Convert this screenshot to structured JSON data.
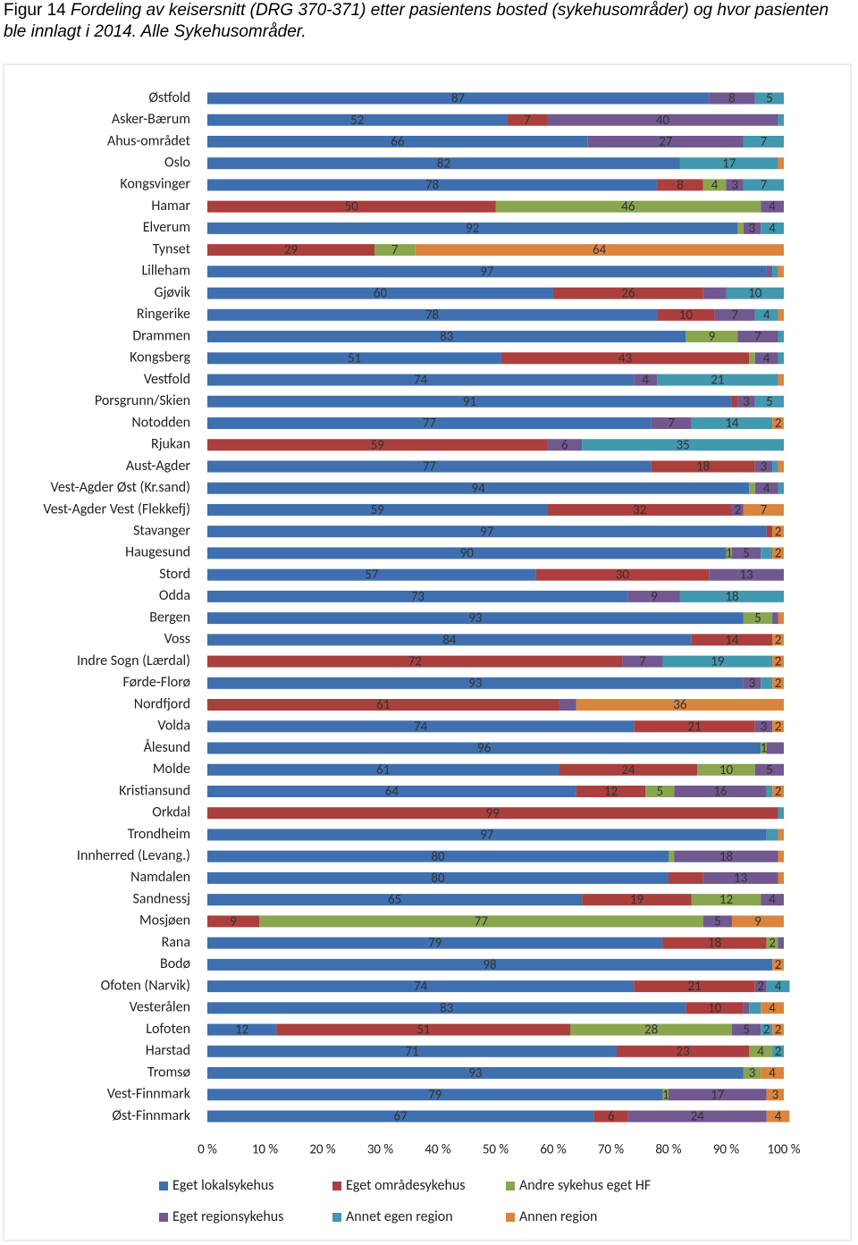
{
  "chart_data": {
    "type": "stacked-barh",
    "figure_label": "Figur 14",
    "title": "Fordeling av keisersnitt (DRG 370-371) etter pasientens bosted (sykehusområder) og hvor pasienten ble innlagt i 2014. Alle Sykehusområder.",
    "categories": [
      "Østfold",
      "Asker-Bærum",
      "Ahus-området",
      "Oslo",
      "Kongsvinger",
      "Hamar",
      "Elverum",
      "Tynset",
      "Lilleham",
      "Gjøvik",
      "Ringerike",
      "Drammen",
      "Kongsberg",
      "Vestfold",
      "Porsgrunn/Skien",
      "Notodden",
      "Rjukan",
      "Aust-Agder",
      "Vest-Agder Øst (Kr.sand)",
      "Vest-Agder Vest (Flekkefj)",
      "Stavanger",
      "Haugesund",
      "Stord",
      "Odda",
      "Bergen",
      "Voss",
      "Indre Sogn (Lærdal)",
      "Førde-Florø",
      "Nordfjord",
      "Volda",
      "Ålesund",
      "Molde",
      "Kristiansund",
      "Orkdal",
      "Trondheim",
      "Innherred (Levang.)",
      "Namdalen",
      "Sandnessj",
      "Mosjøen",
      "Rana",
      "Bodø",
      "Ofoten (Narvik)",
      "Vesterålen",
      "Lofoten",
      "Harstad",
      "Tromsø",
      "Vest-Finnmark",
      "Øst-Finnmark"
    ],
    "series": [
      {
        "name": "Eget lokalsykehus",
        "color": "#3f6fae",
        "values": [
          87,
          52,
          66,
          82,
          78,
          0,
          92,
          0,
          97,
          60,
          78,
          83,
          51,
          74,
          91,
          77,
          0,
          77,
          94,
          59,
          97,
          90,
          57,
          73,
          93,
          84,
          0,
          93,
          0,
          74,
          96,
          61,
          64,
          0,
          97,
          80,
          80,
          65,
          0,
          79,
          98,
          74,
          83,
          12,
          71,
          93,
          79,
          67
        ],
        "value_labels": [
          "87",
          "52",
          "66",
          "82",
          "78",
          null,
          "92",
          null,
          "97",
          "60",
          "78",
          "83",
          "51",
          "74",
          "91",
          "77",
          null,
          "77",
          "94",
          "59",
          "97",
          "90",
          "57",
          "73",
          "93",
          "84",
          null,
          "93",
          null,
          "74",
          "96",
          "61",
          "64",
          null,
          "97",
          "80",
          "80",
          "65",
          null,
          "79",
          "98",
          "74",
          "83",
          "12",
          "71",
          "93",
          "79",
          "67"
        ]
      },
      {
        "name": "Eget områdesykehus",
        "color": "#aa3f3d",
        "values": [
          0,
          7,
          0,
          0,
          8,
          50,
          0,
          29,
          0,
          26,
          10,
          0,
          43,
          0,
          1,
          0,
          59,
          18,
          0,
          32,
          1,
          0,
          30,
          0,
          0,
          14,
          72,
          0,
          61,
          21,
          0,
          24,
          12,
          99,
          0,
          0,
          6,
          19,
          9,
          18,
          0,
          21,
          10,
          51,
          23,
          0,
          0,
          6
        ],
        "value_labels": [
          null,
          "7",
          null,
          null,
          "8",
          "50",
          null,
          "29",
          null,
          "26",
          "10",
          null,
          "43",
          null,
          null,
          null,
          "59",
          "18",
          null,
          "32",
          null,
          null,
          "30",
          null,
          null,
          "14",
          "72",
          null,
          "61",
          "21",
          null,
          "24",
          "12",
          "99",
          null,
          null,
          null,
          "19",
          "9",
          "18",
          null,
          "21",
          "10",
          "51",
          "23",
          null,
          null,
          "6"
        ]
      },
      {
        "name": "Andre sykehus eget HF",
        "color": "#89a54e",
        "values": [
          0,
          0,
          0,
          0,
          4,
          46,
          1,
          7,
          0,
          0,
          0,
          9,
          1,
          0,
          0,
          0,
          0,
          0,
          1,
          0,
          0,
          1,
          0,
          0,
          5,
          0,
          0,
          0,
          0,
          0,
          1,
          10,
          5,
          0,
          0,
          1,
          0,
          12,
          77,
          2,
          0,
          0,
          0,
          28,
          4,
          3,
          1,
          0
        ],
        "value_labels": [
          null,
          null,
          null,
          null,
          "4",
          "46",
          null,
          "7",
          null,
          null,
          null,
          "9",
          null,
          null,
          null,
          null,
          null,
          null,
          null,
          null,
          null,
          "1",
          null,
          null,
          "5",
          null,
          null,
          null,
          null,
          null,
          "1",
          "10",
          "5",
          null,
          null,
          null,
          null,
          "12",
          "77",
          "2",
          null,
          null,
          null,
          "28",
          "4",
          "3",
          "1",
          null
        ]
      },
      {
        "name": "Eget regionsykehus",
        "color": "#71588f",
        "values": [
          8,
          40,
          27,
          0,
          3,
          4,
          3,
          0,
          1,
          4,
          7,
          7,
          4,
          4,
          3,
          7,
          6,
          3,
          4,
          2,
          0,
          5,
          13,
          9,
          1,
          0,
          7,
          3,
          3,
          3,
          3,
          5,
          16,
          0,
          0,
          18,
          13,
          4,
          5,
          1,
          0,
          2,
          1,
          5,
          0,
          0,
          17,
          24
        ],
        "value_labels": [
          "8",
          "40",
          "27",
          null,
          "3",
          "4",
          "3",
          null,
          null,
          null,
          "7",
          "7",
          "4",
          "4",
          "3",
          "7",
          "6",
          "3",
          "4",
          "2",
          null,
          "5",
          "13",
          "9",
          null,
          null,
          "7",
          "3",
          null,
          "3",
          null,
          "5",
          "16",
          null,
          null,
          "18",
          "13",
          "4",
          "5",
          null,
          null,
          "2",
          null,
          "5",
          null,
          null,
          "17",
          "24"
        ]
      },
      {
        "name": "Annet egen region",
        "color": "#4198af",
        "values": [
          5,
          1,
          7,
          17,
          7,
          0,
          4,
          0,
          1,
          10,
          4,
          1,
          1,
          21,
          5,
          14,
          35,
          1,
          1,
          0,
          0,
          2,
          0,
          18,
          0,
          0,
          19,
          2,
          0,
          0,
          0,
          0,
          1,
          1,
          2,
          0,
          0,
          0,
          0,
          0,
          0,
          4,
          2,
          2,
          2,
          0,
          0,
          0
        ],
        "value_labels": [
          "5",
          null,
          "7",
          "17",
          "7",
          null,
          "4",
          null,
          null,
          "10",
          "4",
          null,
          null,
          "21",
          "5",
          "14",
          "35",
          null,
          null,
          null,
          null,
          null,
          null,
          "18",
          null,
          null,
          "19",
          null,
          null,
          null,
          null,
          null,
          null,
          null,
          null,
          null,
          null,
          null,
          null,
          null,
          null,
          "4",
          null,
          "2",
          "2",
          null,
          null,
          null
        ]
      },
      {
        "name": "Annen region",
        "color": "#db843d",
        "values": [
          0,
          0,
          0,
          1,
          0,
          0,
          0,
          64,
          1,
          0,
          1,
          0,
          0,
          1,
          0,
          2,
          0,
          1,
          0,
          7,
          2,
          2,
          0,
          0,
          1,
          2,
          2,
          2,
          36,
          2,
          0,
          0,
          2,
          0,
          1,
          1,
          1,
          0,
          9,
          0,
          2,
          0,
          4,
          2,
          0,
          4,
          3,
          4
        ],
        "value_labels": [
          null,
          null,
          null,
          null,
          null,
          null,
          null,
          "64",
          null,
          null,
          null,
          null,
          null,
          null,
          null,
          "2",
          null,
          null,
          null,
          "7",
          "2",
          "2",
          null,
          null,
          null,
          "2",
          "2",
          "2",
          "36",
          "2",
          null,
          null,
          "2",
          null,
          null,
          null,
          null,
          null,
          "9",
          null,
          "2",
          null,
          "4",
          "2",
          null,
          "4",
          "3",
          "4"
        ]
      }
    ],
    "xlim": [
      0,
      100
    ],
    "xticks": [
      {
        "value": 0,
        "label": "0 %"
      },
      {
        "value": 10,
        "label": "10 %"
      },
      {
        "value": 20,
        "label": "20 %"
      },
      {
        "value": 30,
        "label": "30 %"
      },
      {
        "value": 40,
        "label": "40 %"
      },
      {
        "value": 50,
        "label": "50 %"
      },
      {
        "value": 60,
        "label": "60 %"
      },
      {
        "value": 70,
        "label": "70 %"
      },
      {
        "value": 80,
        "label": "80 %"
      },
      {
        "value": 90,
        "label": "90 %"
      },
      {
        "value": 100,
        "label": "100 %"
      }
    ],
    "legend": "bottom"
  }
}
